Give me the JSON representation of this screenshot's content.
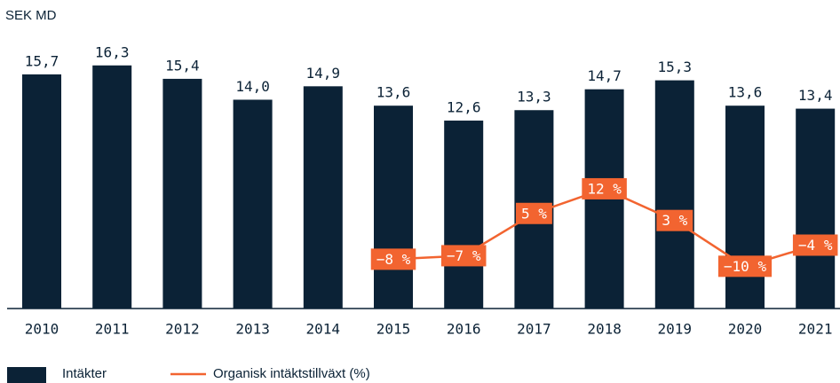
{
  "chart_data": {
    "type": "bar",
    "title": "SEK MD",
    "categories": [
      "2010",
      "2011",
      "2012",
      "2013",
      "2014",
      "2015",
      "2016",
      "2017",
      "2018",
      "2019",
      "2020",
      "2021"
    ],
    "ylim": [
      0,
      17
    ],
    "y2lim": [
      -22,
      50
    ],
    "series": [
      {
        "name": "Intäkter",
        "type": "bar",
        "color": "#0b2236",
        "values": [
          15.7,
          16.3,
          15.4,
          14.0,
          14.9,
          13.6,
          12.6,
          13.3,
          14.7,
          15.3,
          13.6,
          13.4
        ],
        "value_labels": [
          "15,7",
          "16,3",
          "15,4",
          "14,0",
          "14,9",
          "13,6",
          "12,6",
          "13,3",
          "14,7",
          "15,3",
          "13,6",
          "13,4"
        ]
      },
      {
        "name": "Organisk intäktstillväxt (%)",
        "type": "line",
        "axis": "y2",
        "color": "#f26430",
        "values": [
          null,
          null,
          null,
          null,
          null,
          -8,
          -7,
          5,
          12,
          3,
          -10,
          -4
        ],
        "value_labels": [
          null,
          null,
          null,
          null,
          null,
          "−8 %",
          "−7 %",
          "5 %",
          "12 %",
          "3 %",
          "−10 %",
          "−4 %"
        ]
      }
    ]
  }
}
